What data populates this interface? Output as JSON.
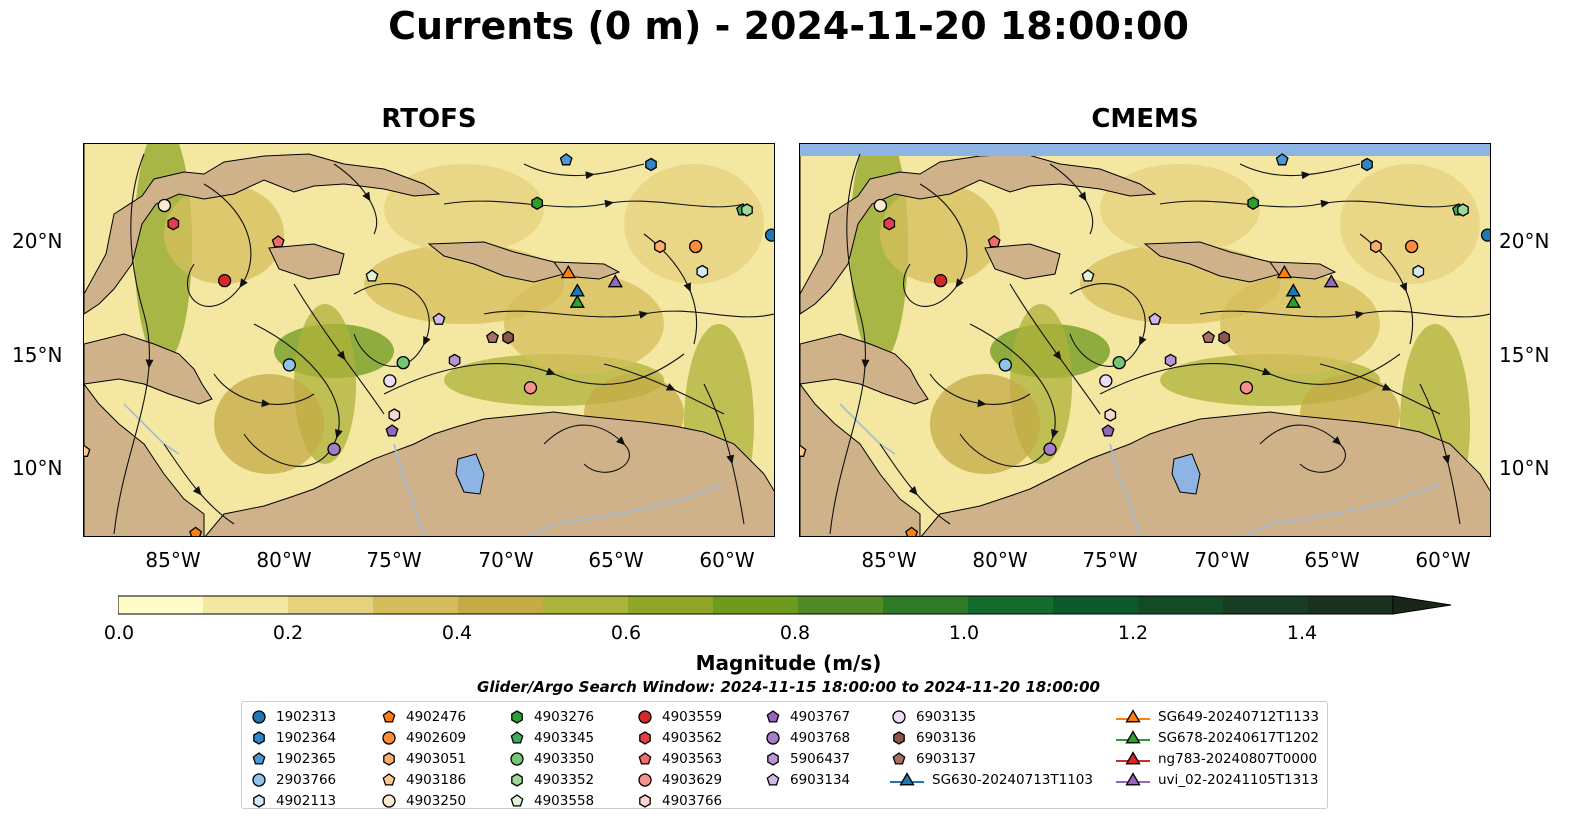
{
  "figure": {
    "title": "Currents (0 m) - 2024-11-20 18:00:00",
    "window_note": "Glider/Argo Search Window: 2024-11-15 18:00:00 to 2024-11-20 18:00:00"
  },
  "panels": [
    {
      "title": "RTOFS"
    },
    {
      "title": "CMEMS"
    }
  ],
  "axes": {
    "lon_ticks": [
      "85°W",
      "80°W",
      "75°W",
      "70°W",
      "65°W",
      "60°W"
    ],
    "lat_ticks": [
      "20°N",
      "15°N",
      "10°N"
    ],
    "lon_range": [
      -89,
      -58
    ],
    "lat_range": [
      7,
      24.3
    ]
  },
  "colorbar": {
    "label": "Magnitude (m/s)",
    "ticks": [
      "0.0",
      "0.2",
      "0.4",
      "0.6",
      "0.8",
      "1.0",
      "1.2",
      "1.4"
    ],
    "range": [
      0,
      1.5
    ],
    "extend": "max",
    "colors": [
      "#fffbc8",
      "#f3e7a2",
      "#e5d27e",
      "#d5bd5c",
      "#c4ab46",
      "#adb23a",
      "#8ea526",
      "#6e9a1d",
      "#4f8a22",
      "#2f7a27",
      "#146b2e",
      "#0c5a2b",
      "#134b26",
      "#183d22",
      "#1b301d",
      "#1a2718"
    ]
  },
  "colors": {
    "land": "#d0b28a",
    "lake": "#8db4e2",
    "river": "#a4bcdc",
    "streamline": "#111111"
  },
  "legend": {
    "entries": [
      {
        "label": "1902313",
        "marker": "circle",
        "color": "#1f77b4"
      },
      {
        "label": "1902364",
        "marker": "hexagon",
        "color": "#2f86c6"
      },
      {
        "label": "1902365",
        "marker": "pentagon",
        "color": "#4a97d4"
      },
      {
        "label": "2903766",
        "marker": "circle",
        "color": "#8ec4ec"
      },
      {
        "label": "4902113",
        "marker": "hexagon",
        "color": "#d4e8f8"
      },
      {
        "label": "4902476",
        "marker": "pentagon",
        "color": "#ff7f0e"
      },
      {
        "label": "4902609",
        "marker": "circle",
        "color": "#fd8d3c"
      },
      {
        "label": "4903051",
        "marker": "hexagon",
        "color": "#fdae6b"
      },
      {
        "label": "4903186",
        "marker": "pentagon",
        "color": "#fdc88f"
      },
      {
        "label": "4903250",
        "marker": "circle",
        "color": "#feead0"
      },
      {
        "label": "4903276",
        "marker": "hexagon",
        "color": "#2ca02c"
      },
      {
        "label": "4903345",
        "marker": "pentagon",
        "color": "#41ab5d"
      },
      {
        "label": "4903350",
        "marker": "circle",
        "color": "#74c476"
      },
      {
        "label": "4903352",
        "marker": "hexagon",
        "color": "#a1d99b"
      },
      {
        "label": "4903558",
        "marker": "pentagon",
        "color": "#e0f5d8"
      },
      {
        "label": "4903559",
        "marker": "circle",
        "color": "#d62728"
      },
      {
        "label": "4903562",
        "marker": "hexagon",
        "color": "#e0404a"
      },
      {
        "label": "4903563",
        "marker": "pentagon",
        "color": "#ef6b6b"
      },
      {
        "label": "4903629",
        "marker": "circle",
        "color": "#f7918e"
      },
      {
        "label": "4903766",
        "marker": "hexagon",
        "color": "#fcd4d0"
      },
      {
        "label": "4903767",
        "marker": "pentagon",
        "color": "#9467bd"
      },
      {
        "label": "4903768",
        "marker": "circle",
        "color": "#a57cc8"
      },
      {
        "label": "5906437",
        "marker": "hexagon",
        "color": "#b995d8"
      },
      {
        "label": "6903134",
        "marker": "pentagon",
        "color": "#d2b7ea"
      },
      {
        "label": "6903135",
        "marker": "circle",
        "color": "#eddcf8"
      },
      {
        "label": "6903136",
        "marker": "hexagon",
        "color": "#8c564b"
      },
      {
        "label": "6903137",
        "marker": "pentagon",
        "color": "#a87060"
      },
      {
        "label": "SG630-20240713T1103",
        "marker": "triangle",
        "color": "#1f77b4"
      },
      {
        "label": "SG649-20240712T1133",
        "marker": "triangle",
        "color": "#ff7f0e"
      },
      {
        "label": "SG678-20240617T1202",
        "marker": "triangle",
        "color": "#2ca02c"
      },
      {
        "label": "ng783-20240807T0000",
        "marker": "triangle",
        "color": "#d62728"
      },
      {
        "label": "uvi_02-20241105T1313",
        "marker": "triangle",
        "color": "#9467bd"
      }
    ]
  },
  "platforms": [
    {
      "id": "1902313",
      "lon": -58.2,
      "lat": 20.3
    },
    {
      "id": "1902364",
      "lon": -63.6,
      "lat": 23.4
    },
    {
      "id": "1902365",
      "lon": -67.4,
      "lat": 23.6
    },
    {
      "id": "2903766",
      "lon": -79.8,
      "lat": 14.6
    },
    {
      "id": "4902113",
      "lon": -61.3,
      "lat": 18.7
    },
    {
      "id": "4902476",
      "lon": -84.0,
      "lat": 7.2
    },
    {
      "id": "4902609",
      "lon": -61.6,
      "lat": 19.8
    },
    {
      "id": "4903051",
      "lon": -63.2,
      "lat": 19.8
    },
    {
      "id": "4903186",
      "lon": -89.0,
      "lat": 10.8
    },
    {
      "id": "4903250",
      "lon": -85.4,
      "lat": 21.6
    },
    {
      "id": "4903276",
      "lon": -68.7,
      "lat": 21.7
    },
    {
      "id": "4903345",
      "lon": -59.5,
      "lat": 21.4
    },
    {
      "id": "4903350",
      "lon": -74.7,
      "lat": 14.7
    },
    {
      "id": "4903352",
      "lon": -59.3,
      "lat": 21.4
    },
    {
      "id": "4903558",
      "lon": -76.1,
      "lat": 18.5
    },
    {
      "id": "4903559",
      "lon": -82.7,
      "lat": 18.3
    },
    {
      "id": "4903562",
      "lon": -85.0,
      "lat": 20.8
    },
    {
      "id": "4903563",
      "lon": -80.3,
      "lat": 20.0
    },
    {
      "id": "4903629",
      "lon": -69.0,
      "lat": 13.6
    },
    {
      "id": "4903766",
      "lon": -75.1,
      "lat": 12.4
    },
    {
      "id": "4903767",
      "lon": -75.2,
      "lat": 11.7
    },
    {
      "id": "4903768",
      "lon": -77.8,
      "lat": 10.9
    },
    {
      "id": "5906437",
      "lon": -72.4,
      "lat": 14.8
    },
    {
      "id": "6903134",
      "lon": -73.1,
      "lat": 16.6
    },
    {
      "id": "6903135",
      "lon": -75.3,
      "lat": 13.9
    },
    {
      "id": "6903136",
      "lon": -70.0,
      "lat": 15.8
    },
    {
      "id": "6903137",
      "lon": -70.7,
      "lat": 15.8
    },
    {
      "id": "SG630-20240713T1103",
      "lon": -66.9,
      "lat": 17.8
    },
    {
      "id": "SG649-20240712T1133",
      "lon": -67.3,
      "lat": 18.6
    },
    {
      "id": "SG678-20240617T1202",
      "lon": -66.9,
      "lat": 17.3
    },
    {
      "id": "uvi_02-20241105T1313",
      "lon": -65.2,
      "lat": 18.2
    }
  ]
}
